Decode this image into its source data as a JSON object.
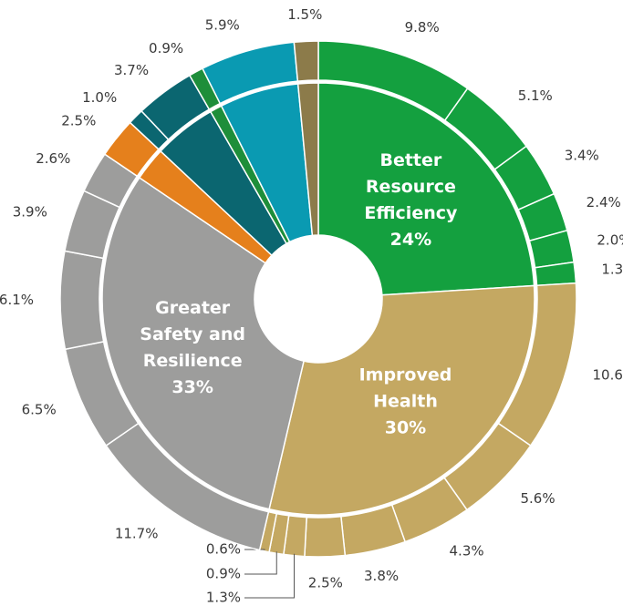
{
  "chart_data": {
    "type": "sunburst",
    "groups": [
      {
        "name": [
          "Better",
          "Resource",
          "Efficiency"
        ],
        "value": 24,
        "value_label": "24%",
        "color": "#14a03f",
        "values": [
          9.8,
          5.1,
          3.4,
          2.4,
          2.0,
          1.3
        ],
        "value_labels": [
          "9.8%",
          "5.1%",
          "3.4%",
          "2.4%",
          "2.0%",
          "1.3%"
        ]
      },
      {
        "name": [
          "Improved",
          "Health"
        ],
        "value": 30,
        "value_label": "30%",
        "color": "#c4a862",
        "values": [
          10.6,
          5.6,
          4.3,
          3.8,
          2.5,
          1.3,
          0.9,
          0.6
        ],
        "value_labels": [
          "10.6%",
          "5.6%",
          "4.3%",
          "3.8%",
          "2.5%",
          "1.3%",
          "0.9%",
          "0.6%"
        ]
      },
      {
        "name": [
          "Greater",
          "Safety and",
          "Resilience"
        ],
        "value": 33,
        "value_label": "33%",
        "color": "#9d9d9c",
        "values": [
          11.7,
          6.5,
          6.1,
          3.9,
          2.6
        ],
        "value_labels": [
          "11.7%",
          "6.5%",
          "6.1%",
          "3.9%",
          "2.6%"
        ]
      },
      {
        "color": "#e5801c",
        "values": [
          2.5
        ],
        "value_labels": [
          "2.5%"
        ]
      },
      {
        "color": "#0b6670",
        "values": [
          1.0,
          3.7
        ],
        "value_labels": [
          "1.0%",
          "3.7%"
        ]
      },
      {
        "color": "#1e8e3a",
        "values": [
          0.9
        ],
        "value_labels": [
          "0.9%"
        ]
      },
      {
        "color": "#0a9ab2",
        "values": [
          5.9
        ],
        "value_labels": [
          "5.9%"
        ]
      },
      {
        "color": "#8c7b4a",
        "values": [
          1.5
        ],
        "value_labels": [
          "1.5%"
        ]
      }
    ]
  }
}
